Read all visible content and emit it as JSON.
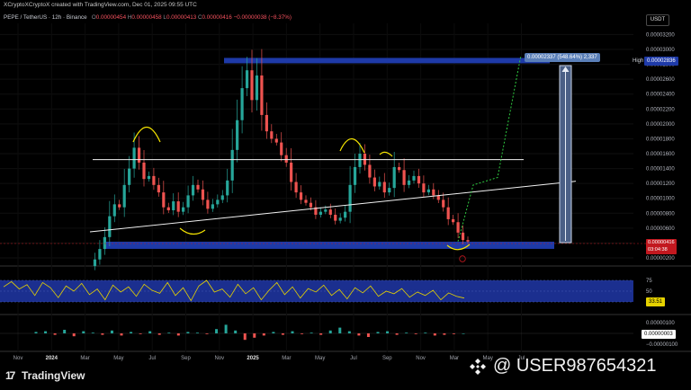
{
  "header": {
    "credit": "XCryptoXCryptoX created with TradingView.com, Dec 01, 2025 09:55 UTC",
    "symbol": "PEPE / TetherUS · 12h · Binance",
    "open_label": "O",
    "open": "0.00000454",
    "high_label": "H",
    "high": "0.00000458",
    "low_label": "L",
    "low": "0.00000413",
    "close_label": "C",
    "close": "0.00000416",
    "change": "−0.00000038 (−8.37%)",
    "currency": "USDT"
  },
  "measure_label": "0.00002337 (548.64%) 2,337",
  "high_marker": {
    "label": "High",
    "value": "0.00002836"
  },
  "price_badge": {
    "price": "0.00000416",
    "countdown": "03:04:38"
  },
  "rsi_badge": "33.51",
  "macd_badge": "0.00000003",
  "brand": "TradingView",
  "watermark": "@ USER987654321",
  "colors": {
    "background": "#000000",
    "candle_up": "#26a69a",
    "candle_down": "#ef5350",
    "zone": "#1e3aa8",
    "rsi_line": "#e6d200",
    "rsi_band": "#1b2f8f",
    "annotation_yellow": "#f5e400",
    "projection": "#2ecc40"
  },
  "chart_data": [
    {
      "type": "line",
      "title": "PEPE / TetherUS · 12h · Binance",
      "x_ticks": [
        "Nov",
        "2024",
        "Mar",
        "May",
        "Jul",
        "Sep",
        "Nov",
        "2025",
        "Mar",
        "May",
        "Jul",
        "Sep",
        "Nov",
        "Mar",
        "May",
        "Jul"
      ],
      "y_ticks": [
        "0.00003200",
        "0.00003000",
        "0.00002800",
        "0.00002600",
        "0.00002400",
        "0.00002200",
        "0.00002000",
        "0.00001800",
        "0.00001600",
        "0.00001400",
        "0.00001200",
        "0.00001000",
        "0.00000800",
        "0.00000600",
        "0.00000400",
        "0.00000200"
      ],
      "ylim": [
        1.4e-06,
        3.35e-05
      ],
      "series": [
        {
          "values": [
            9e-07,
            1.8e-06,
            3.2e-06,
            4.8e-06,
            7.6e-06,
            9.2e-06,
            8.8e-06,
            1.18e-05,
            1.4e-05,
            1.68e-05,
            1.48e-05,
            1.26e-05,
            1.3e-05,
            1.18e-05,
            1.08e-05,
            8.8e-06,
            8.4e-06,
            9.6e-06,
            8.2e-06,
            8.8e-06,
            1.04e-05,
            1.18e-05,
            1.12e-05,
            9.8e-06,
            8.6e-06,
            9.2e-06,
            9.8e-06,
            1.04e-05,
            1.24e-05,
            1.65e-05,
            2.05e-05,
            2.48e-05,
            2.72e-05,
            2.32e-05,
            2.65e-05,
            2.12e-05,
            1.9e-05,
            1.8e-05,
            1.75e-05,
            1.58e-05,
            1.48e-05,
            1.22e-05,
            1.08e-05,
            9.8e-06,
            9.4e-06,
            8.8e-06,
            7.8e-06,
            8.2e-06,
            8.5e-06,
            7.8e-06,
            7e-06,
            7.4e-06,
            8.2e-06,
            1.18e-05,
            1.42e-05,
            1.6e-05,
            1.45e-05,
            1.28e-05,
            1.16e-05,
            1.22e-05,
            1.08e-05,
            1.14e-05,
            1.42e-05,
            1.38e-05,
            1.18e-05,
            1.24e-05,
            1.3e-05,
            1.2e-05,
            1.08e-05,
            1.12e-05,
            1.04e-05,
            9.8e-06,
            8.8e-06,
            7.2e-06,
            6.8e-06,
            5.4e-06,
            4.4e-06,
            4.2e-06
          ]
        }
      ],
      "annotations": {
        "range_high": 2.85e-05,
        "range_low": 3.7e-06,
        "neckline": 1.52e-05,
        "trendline_start": 5.5e-06,
        "trendline_end": 1.23e-05,
        "projection_target": 2.85e-05
      }
    },
    {
      "type": "line",
      "title": "RSI",
      "y_ticks": [
        "75",
        "50",
        "25"
      ],
      "ylim": [
        0,
        100
      ],
      "band": [
        25,
        75
      ],
      "series": [
        {
          "values": [
            60,
            72,
            55,
            65,
            40,
            70,
            58,
            35,
            62,
            50,
            68,
            42,
            55,
            30,
            64,
            48,
            60,
            38,
            66,
            52,
            45,
            70,
            40,
            58,
            28,
            62,
            75,
            48,
            55,
            36,
            66,
            44,
            58,
            30,
            52,
            70,
            42,
            60,
            34,
            56,
            48,
            64,
            40,
            54,
            32,
            58,
            46,
            62,
            38,
            50,
            44,
            56,
            36,
            48,
            40,
            52,
            30,
            46,
            38,
            34
          ]
        }
      ]
    },
    {
      "type": "bar",
      "title": "MACD",
      "y_ticks": [
        "0.00000100",
        "−0.00000100"
      ],
      "ylim": [
        -1.5e-06,
        1.5e-06
      ],
      "series": [
        {
          "values": [
            0.2,
            0.3,
            -0.2,
            0.5,
            -0.4,
            0.3,
            0.1,
            -0.2,
            0.4,
            -0.3,
            0.2,
            -0.1,
            0.3,
            -0.2,
            0.1,
            -0.3,
            0.2,
            0.1,
            -0.1,
            0.6,
            1.2,
            0.4,
            -0.9,
            -0.6,
            -0.3,
            0.2,
            -0.2,
            0.3,
            -0.1,
            0.1,
            -0.2,
            0.4,
            0.8,
            0.3,
            -0.3,
            -0.5,
            0.2,
            0.3,
            -0.2,
            0.1,
            -0.1,
            0.1,
            -0.3,
            -0.2,
            -0.1,
            0.0
          ]
        }
      ]
    }
  ]
}
